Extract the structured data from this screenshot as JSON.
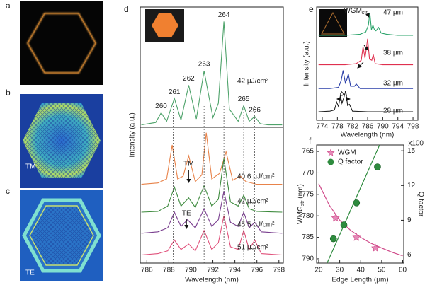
{
  "panel_labels": [
    "a",
    "b",
    "c",
    "d",
    "e",
    "f"
  ],
  "image_labels": [
    "TM",
    "TE"
  ],
  "chart_data": [
    {
      "type": "line",
      "xlim": [
        785.4,
        798.4
      ],
      "ylim": [
        0,
        1
      ],
      "ylabel": "Intensity (a.u.)",
      "mode_numbers": [
        260,
        261,
        262,
        263,
        264,
        265,
        266
      ],
      "mode_x": [
        787.3,
        788.5,
        789.8,
        791.2,
        793.0,
        794.8,
        795.8
      ],
      "series": [
        {
          "name": "42 μJ/cm²",
          "color": "#4fa36b",
          "x": [
            785.5,
            786.8,
            787.3,
            787.8,
            788.5,
            789.1,
            789.8,
            790.5,
            791.2,
            792.0,
            792.5,
            793.0,
            793.5,
            794.3,
            794.8,
            795.3,
            795.8,
            796.3,
            797,
            798.3
          ],
          "values": [
            0.02,
            0.04,
            0.12,
            0.05,
            0.24,
            0.06,
            0.35,
            0.07,
            0.47,
            0.08,
            0.2,
            0.88,
            0.15,
            0.05,
            0.18,
            0.05,
            0.09,
            0.03,
            0.02,
            0.02
          ]
        }
      ]
    },
    {
      "type": "line",
      "xlim": [
        785.4,
        798.4
      ],
      "ylim": [
        0,
        1
      ],
      "xlabel": "Wavelength (nm)",
      "xticks": [
        786,
        788,
        790,
        792,
        794,
        796,
        798
      ],
      "guides": [
        788.4,
        791.2,
        793.0,
        794.8,
        795.8
      ],
      "annotations": [
        {
          "text": "TM",
          "x": 789.8
        },
        {
          "text": "TE",
          "x": 789.6
        }
      ],
      "series": [
        {
          "name": "40.6 μJ/cm²",
          "color": "#e8834a",
          "x": [
            785.5,
            787,
            787.8,
            788.3,
            788.8,
            789.3,
            789.8,
            790.4,
            791.0,
            791.4,
            791.9,
            792.6,
            793.2,
            793.8,
            794.5,
            795,
            796,
            798.3
          ],
          "values": [
            0.58,
            0.59,
            0.62,
            0.87,
            0.62,
            0.64,
            0.79,
            0.6,
            0.65,
            0.96,
            0.62,
            0.66,
            0.82,
            0.61,
            0.64,
            0.6,
            0.58,
            0.58
          ]
        },
        {
          "name": "42 μJ/cm²",
          "color": "#3d8a3d",
          "x": [
            785.5,
            787,
            787.9,
            788.5,
            789.1,
            789.8,
            790.4,
            791.2,
            791.9,
            792.5,
            793.0,
            793.6,
            794.3,
            794.8,
            795.3,
            796,
            798.3
          ],
          "values": [
            0.375,
            0.38,
            0.42,
            0.56,
            0.42,
            0.48,
            0.41,
            0.57,
            0.42,
            0.47,
            0.77,
            0.45,
            0.42,
            0.5,
            0.4,
            0.38,
            0.375
          ]
        },
        {
          "name": "45.5 μJ/cm²",
          "color": "#7a3f8f",
          "x": [
            785.5,
            787,
            787.9,
            788.5,
            789.1,
            789.7,
            790.4,
            791.2,
            791.9,
            792.5,
            793.0,
            793.6,
            794.3,
            794.8,
            795.3,
            795.8,
            796.4,
            798.3
          ],
          "values": [
            0.22,
            0.23,
            0.26,
            0.375,
            0.27,
            0.32,
            0.26,
            0.4,
            0.27,
            0.32,
            0.53,
            0.3,
            0.27,
            0.375,
            0.26,
            0.3,
            0.23,
            0.22
          ]
        },
        {
          "name": "51 μJ/cm²",
          "color": "#e0507a",
          "x": [
            785.5,
            787,
            787.9,
            788.5,
            789.1,
            789.8,
            790.4,
            791.2,
            791.9,
            792.5,
            793.0,
            793.6,
            794.3,
            794.8,
            795.3,
            795.8,
            796.4,
            798.3
          ],
          "values": [
            0.06,
            0.07,
            0.09,
            0.17,
            0.1,
            0.14,
            0.09,
            0.24,
            0.1,
            0.15,
            0.35,
            0.12,
            0.1,
            0.24,
            0.1,
            0.17,
            0.07,
            0.06
          ]
        }
      ]
    },
    {
      "type": "line",
      "xlim": [
        772.5,
        799.3
      ],
      "ylim": [
        0,
        1
      ],
      "xlabel": "Wavelength (nm)",
      "ylabel": "Intensity (a.u.)",
      "xticks": [
        774,
        778,
        782,
        786,
        790,
        794,
        798
      ],
      "annotations": [
        {
          "text": "WGM",
          "sub": "str",
          "x": 786.5
        },
        {
          "text": "δλ",
          "x": 779.6
        }
      ],
      "series": [
        {
          "name": "47 μm",
          "color": "#2aa36a",
          "x": [
            773,
            780,
            784,
            785.5,
            786.2,
            786.6,
            787.0,
            787.4,
            787.8,
            788.2,
            788.9,
            789.6,
            791,
            794,
            798
          ],
          "values": [
            0.75,
            0.75,
            0.76,
            0.78,
            0.84,
            0.95,
            0.8,
            0.84,
            0.8,
            0.79,
            0.82,
            0.77,
            0.76,
            0.75,
            0.75
          ]
        },
        {
          "name": "38 μm",
          "color": "#e0304f",
          "x": [
            773,
            780,
            783,
            784.3,
            784.8,
            785.3,
            785.7,
            786.0,
            786.5,
            787.1,
            787.5,
            788,
            790,
            794,
            798
          ],
          "values": [
            0.49,
            0.49,
            0.5,
            0.53,
            0.65,
            0.55,
            0.64,
            0.72,
            0.54,
            0.53,
            0.58,
            0.5,
            0.49,
            0.49,
            0.49
          ]
        },
        {
          "name": "32 μm",
          "color": "#2a3fa8",
          "x": [
            773,
            776,
            778.3,
            779.0,
            779.5,
            780.1,
            780.5,
            780.9,
            781.5,
            782.5,
            783,
            784,
            788,
            798
          ],
          "values": [
            0.28,
            0.28,
            0.29,
            0.35,
            0.44,
            0.33,
            0.36,
            0.41,
            0.3,
            0.3,
            0.32,
            0.28,
            0.28,
            0.28
          ]
        },
        {
          "name": "28 μm",
          "color": "#222222",
          "x": [
            773,
            776,
            777.2,
            777.8,
            778.3,
            778.8,
            779.2,
            779.7,
            780.2,
            780.7,
            781.2,
            782,
            786,
            798
          ],
          "values": [
            0.075,
            0.08,
            0.09,
            0.16,
            0.12,
            0.22,
            0.15,
            0.2,
            0.26,
            0.13,
            0.14,
            0.08,
            0.075,
            0.075
          ]
        }
      ]
    },
    {
      "type": "scatter",
      "xlabel": "Edge Length (μm)",
      "xlim": [
        19,
        60.5
      ],
      "xticks": [
        20,
        30,
        40,
        50,
        60
      ],
      "ylabel": "WMG",
      "ylabel_sub": "str",
      "ylabel_unit": " (nm)",
      "ylim": [
        763.5,
        791
      ],
      "y_inverted": true,
      "yticks": [
        765,
        770,
        775,
        780,
        785,
        790
      ],
      "y2label": "Q factor",
      "y2label_scale": "x100",
      "y2lim": [
        5.3,
        15.5
      ],
      "y2ticks": [
        6,
        9,
        12,
        15
      ],
      "series": [
        {
          "name": "WGM",
          "color": "#d04b8a",
          "marker": "star",
          "x": [
            28,
            38,
            47
          ],
          "values": [
            780.5,
            785,
            787.5
          ]
        },
        {
          "name": "Q factor",
          "color": "#2e8b3e",
          "marker": "circle",
          "axis": "y2",
          "x": [
            27,
            32,
            38,
            48
          ],
          "values": [
            7.4,
            8.6,
            10.5,
            13.6
          ]
        }
      ],
      "fits": [
        {
          "color": "#d04b8a",
          "x": [
            20,
            25,
            30,
            35,
            40,
            45,
            50,
            55,
            60
          ],
          "values": [
            772.5,
            777.5,
            781,
            783.3,
            785,
            786.4,
            787.5,
            788.5,
            789.3
          ]
        },
        {
          "color": "#2e8b3e",
          "axis": "y2",
          "x": [
            24,
            49
          ],
          "values": [
            5.3,
            15.5
          ]
        }
      ]
    }
  ]
}
